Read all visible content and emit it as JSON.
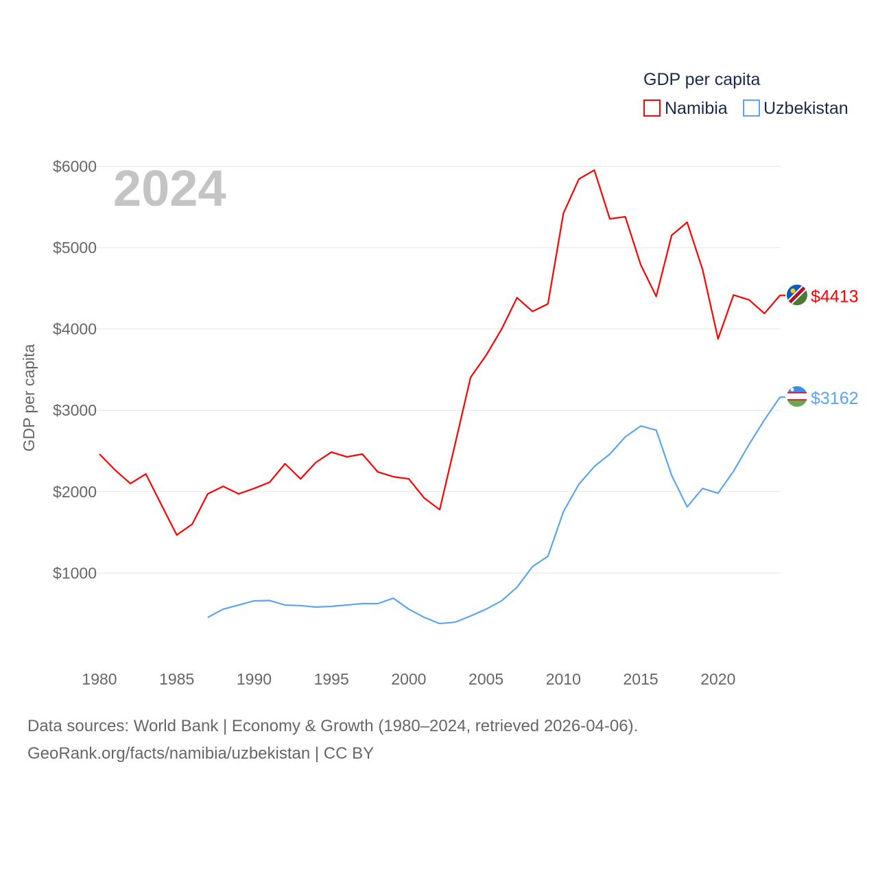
{
  "chart_data": {
    "type": "line",
    "title": "GDP per capita",
    "year_label": "2024",
    "ylabel": "GDP per capita",
    "xlabel": "",
    "xlim": [
      1980,
      2024
    ],
    "ylim": [
      0,
      6000
    ],
    "x_ticks": [
      "1980",
      "1985",
      "1990",
      "1995",
      "2000",
      "2005",
      "2010",
      "2015",
      "2020"
    ],
    "y_ticks": [
      {
        "v": 1000,
        "label": "$1000"
      },
      {
        "v": 2000,
        "label": "$2000"
      },
      {
        "v": 3000,
        "label": "$3000"
      },
      {
        "v": 4000,
        "label": "$4000"
      },
      {
        "v": 5000,
        "label": "$5000"
      },
      {
        "v": 6000,
        "label": "$6000"
      }
    ],
    "grid": true,
    "legend_position": "top-right",
    "series": [
      {
        "name": "Namibia",
        "color": "#ff0000",
        "start_year": 1980,
        "end_label": "$4413",
        "values": [
          2462,
          2268,
          2100,
          2218,
          1840,
          1467,
          1602,
          1973,
          2066,
          1973,
          2040,
          2116,
          2344,
          2158,
          2361,
          2487,
          2428,
          2462,
          2243,
          2184,
          2158,
          1922,
          1779,
          2589,
          3406,
          3676,
          3997,
          4385,
          4216,
          4309,
          5422,
          5843,
          5953,
          5354,
          5380,
          4789,
          4401,
          5152,
          5312,
          4730,
          3879,
          4418,
          4359,
          4191,
          4413
        ]
      },
      {
        "name": "Uzbekistan",
        "color": "#5ba5f0",
        "start_year": 1987,
        "end_label": "$3162",
        "values": [
          455,
          556,
          607,
          658,
          662,
          607,
          599,
          582,
          590,
          607,
          624,
          624,
          691,
          556,
          455,
          379,
          396,
          472,
          556,
          658,
          826,
          1079,
          1206,
          1754,
          2091,
          2310,
          2462,
          2673,
          2808,
          2757,
          2201,
          1813,
          2040,
          1981,
          2251,
          2580,
          2883,
          3162
        ]
      }
    ]
  },
  "footer": {
    "line1": "Data sources: World Bank | Economy & Growth (1980–2024, retrieved 2026-04-06).",
    "line2": "GeoRank.org/facts/namibia/uzbekistan | CC BY"
  }
}
